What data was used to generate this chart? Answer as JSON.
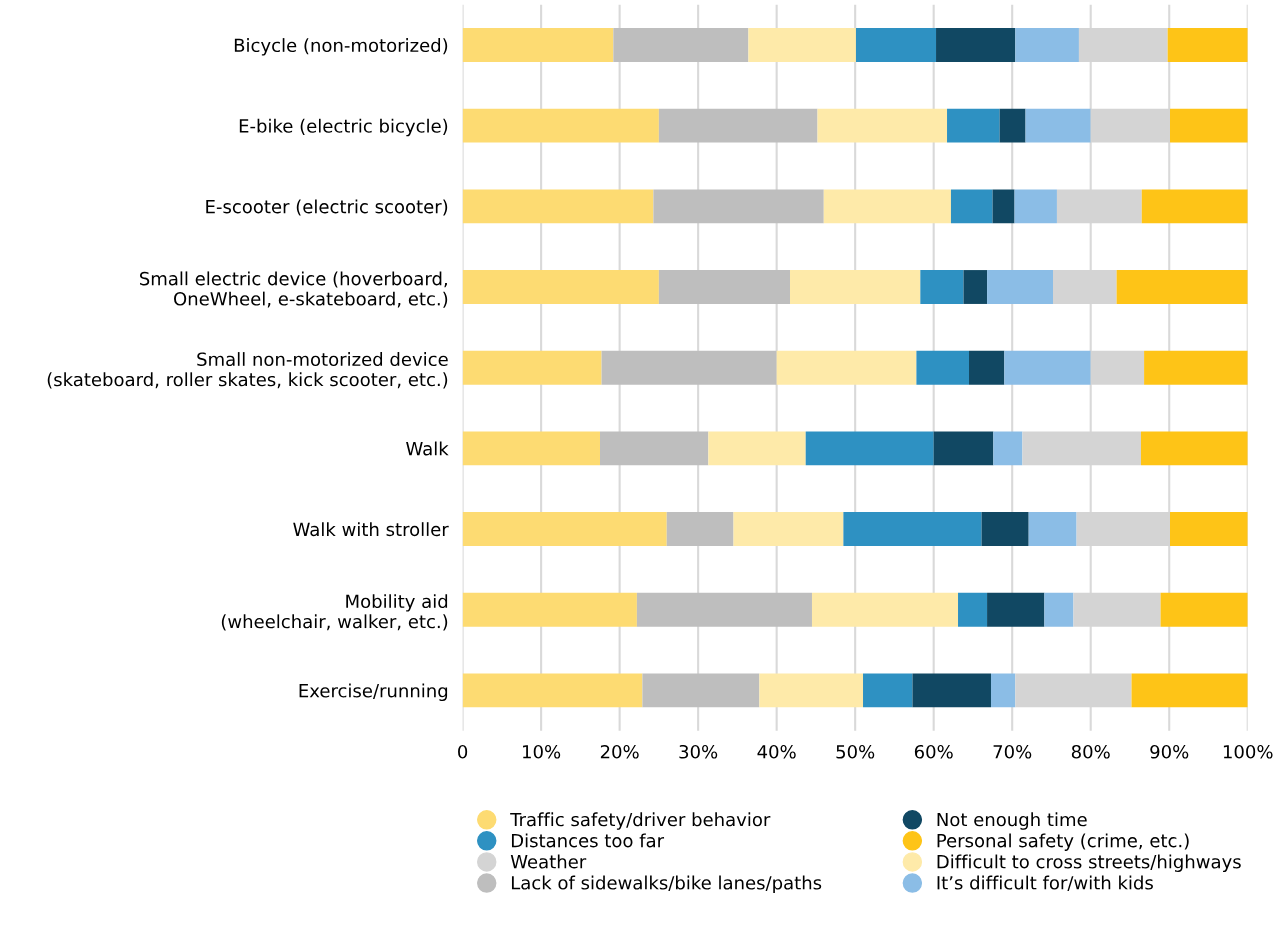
{
  "chart_data": {
    "type": "bar",
    "orientation": "horizontal",
    "stacked": true,
    "categories": [
      "Bicycle (non-motorized)",
      "E-bike (electric bicycle)",
      "E-scooter (electric scooter)",
      "Small electric device (hoverboard,\nOneWheel, e-skateboard, etc.)",
      "Small non-motorized device\n(skateboard, roller skates, kick scooter, etc.)",
      "Walk",
      "Walk with stroller",
      "Mobility aid\n(wheelchair, walker, etc.)",
      "Exercise/running"
    ],
    "series": [
      {
        "name": "Traffic safety/driver behavior",
        "color": "#fddb72",
        "values": [
          19.2,
          25.0,
          24.3,
          25.0,
          17.7,
          17.5,
          26.0,
          22.2,
          22.9
        ]
      },
      {
        "name": "Lack of sidewalks/bike lanes/paths",
        "color": "#bebebe",
        "values": [
          17.2,
          20.2,
          21.7,
          16.7,
          22.3,
          13.8,
          8.5,
          22.3,
          14.9
        ]
      },
      {
        "name": "Difficult to cross streets/highways",
        "color": "#feeaa9",
        "values": [
          13.7,
          16.5,
          16.2,
          16.6,
          17.8,
          12.4,
          14.0,
          18.6,
          13.2
        ]
      },
      {
        "name": "Distances too far",
        "color": "#2e91c2",
        "values": [
          10.2,
          6.7,
          5.3,
          5.5,
          6.7,
          16.3,
          17.6,
          3.7,
          6.3
        ]
      },
      {
        "name": "Not enough time",
        "color": "#114863",
        "values": [
          10.1,
          3.3,
          2.8,
          3.0,
          4.5,
          7.6,
          6.0,
          7.3,
          10.0
        ]
      },
      {
        "name": "It’s difficult for/with kids",
        "color": "#8bbde6",
        "values": [
          8.1,
          8.3,
          5.4,
          8.4,
          11.0,
          3.7,
          6.1,
          3.7,
          3.1
        ]
      },
      {
        "name": "Weather",
        "color": "#d4d4d4",
        "values": [
          11.3,
          10.1,
          10.8,
          8.1,
          6.8,
          15.1,
          11.9,
          11.1,
          14.8
        ]
      },
      {
        "name": "Personal safety (crime, etc.)",
        "color": "#fec417",
        "values": [
          10.2,
          9.9,
          13.5,
          16.7,
          13.2,
          13.6,
          9.9,
          11.1,
          14.8
        ]
      }
    ],
    "xlim": [
      0,
      100
    ],
    "xticks": [
      0,
      {
        "value": 10,
        "label": "10%"
      },
      {
        "value": 20,
        "label": "20%"
      },
      {
        "value": 30,
        "label": "30%"
      },
      {
        "value": 40,
        "label": "40%"
      },
      {
        "value": 50,
        "label": "50%"
      },
      {
        "value": 60,
        "label": "60%"
      },
      {
        "value": 70,
        "label": "70%"
      },
      {
        "value": 80,
        "label": "80%"
      },
      {
        "value": 90,
        "label": "90%"
      },
      {
        "value": 100,
        "label": "100%"
      }
    ],
    "grid": "x",
    "legend": "bottom"
  }
}
